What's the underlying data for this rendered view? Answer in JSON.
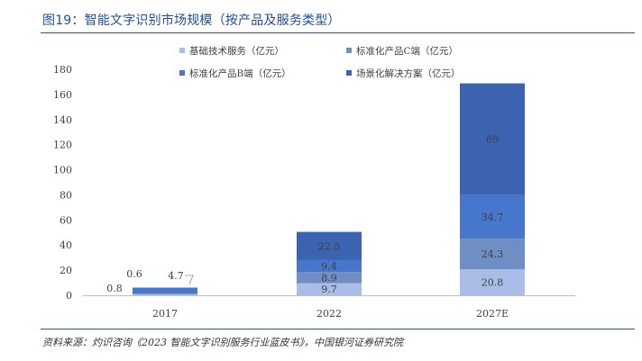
{
  "figure": {
    "title": "图19：智能文字识别市场规模（按产品及服务类型）",
    "source": "资料来源：灼识咨询《2023 智能文字识别服务行业蓝皮书》，中国银河证券研究院"
  },
  "colors": {
    "title": "#1f4e9a",
    "rule": "#2f5597",
    "series": [
      "#a9bde6",
      "#6f8fc4",
      "#4777cc",
      "#3b63b0"
    ]
  },
  "chart_data": {
    "type": "bar",
    "stacked": true,
    "categories": [
      "2017",
      "2022",
      "2027E"
    ],
    "series": [
      {
        "name": "基础技术服务（亿元）",
        "values": [
          0.8,
          9.7,
          20.8
        ]
      },
      {
        "name": "标准化产品C端（亿元）",
        "values": [
          0.6,
          8.9,
          24.3
        ]
      },
      {
        "name": "标准化产品B端（亿元）",
        "values": [
          4.7,
          9.4,
          34.7
        ]
      },
      {
        "name": "场景化解决方案（亿元）",
        "values": [
          null,
          22.5,
          89
        ]
      }
    ],
    "data_labels": [
      [
        "0.8",
        "0.6",
        "4.7",
        ""
      ],
      [
        "9.7",
        "8.9",
        "9.4",
        "22.5"
      ],
      [
        "20.8",
        "24.3",
        "34.7",
        "89"
      ]
    ],
    "yticks": [
      "0",
      "20",
      "40",
      "60",
      "80",
      "100",
      "120",
      "140",
      "160",
      "180"
    ],
    "ylim": [
      0,
      180
    ],
    "grid": false,
    "legend": "top",
    "xlabel": "",
    "ylabel": ""
  }
}
